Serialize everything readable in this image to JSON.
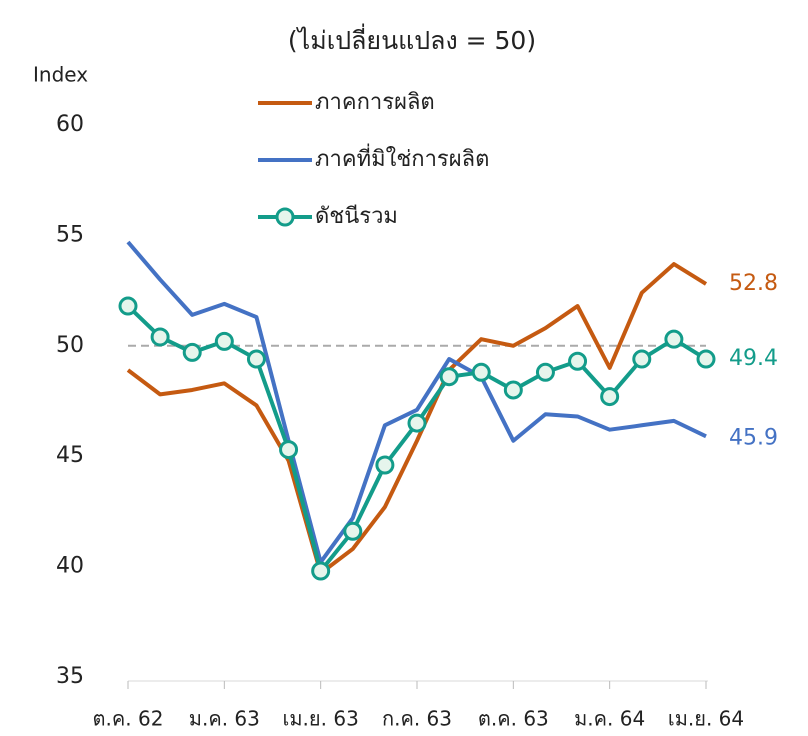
{
  "chart_data": {
    "type": "line",
    "title": "(ไม่เปลี่ยนแปลง = 50)",
    "y_label": "Index",
    "categories": [
      "ต.ค. 62",
      null,
      null,
      "ม.ค. 63",
      null,
      null,
      "เม.ย. 63",
      null,
      null,
      "ก.ค. 63",
      null,
      null,
      "ต.ค. 63",
      null,
      null,
      "ม.ค. 64",
      null,
      null,
      "เม.ย. 64"
    ],
    "series": [
      {
        "name": "ภาคการผลิต",
        "color": "#c55a11",
        "markers": false,
        "values": [
          48.9,
          47.8,
          48.0,
          48.3,
          47.3,
          44.8,
          39.7,
          40.8,
          42.7,
          45.7,
          48.9,
          50.3,
          50.0,
          50.8,
          51.8,
          49.0,
          52.4,
          53.7,
          52.8
        ]
      },
      {
        "name": "ภาคที่มิใช่การผลิต",
        "color": "#4472c4",
        "markers": false,
        "values": [
          54.7,
          53.0,
          51.4,
          51.9,
          51.3,
          45.7,
          40.2,
          42.2,
          46.4,
          47.1,
          49.4,
          48.6,
          45.7,
          46.9,
          46.8,
          46.2,
          46.4,
          46.6,
          45.9
        ]
      },
      {
        "name": "ดัชนีรวม",
        "color": "#139c8a",
        "markers": true,
        "values": [
          51.8,
          50.4,
          49.7,
          50.2,
          49.4,
          45.3,
          39.8,
          41.6,
          44.6,
          46.5,
          48.6,
          48.8,
          48.0,
          48.8,
          49.3,
          47.7,
          49.4,
          50.3,
          49.4
        ]
      }
    ],
    "reference_line": 50,
    "ylim": [
      35,
      60
    ],
    "yticks": [
      35,
      40,
      45,
      50,
      55,
      60
    ],
    "grid": false
  }
}
